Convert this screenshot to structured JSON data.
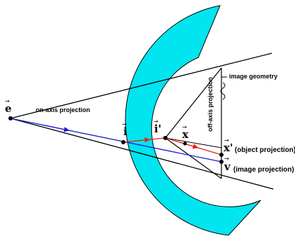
{
  "colors": {
    "lens_fill": "#00e5ef",
    "lens_stroke": "#000000",
    "on_axis_ray": "#1a1adb",
    "object_ray": "#e8211a",
    "lines": "#000000"
  },
  "labels": {
    "e": "e",
    "i": "i",
    "i_prime": "i'",
    "x": "x",
    "x_prime": "x'",
    "v": "v",
    "vector_arrow": "→",
    "on_axis_projection": "on-axis projection",
    "off_axis_projection": "off-axis projection",
    "image_geometry": "image geometry",
    "object_projection": "(object projection)",
    "image_projection": "(image projection)"
  }
}
